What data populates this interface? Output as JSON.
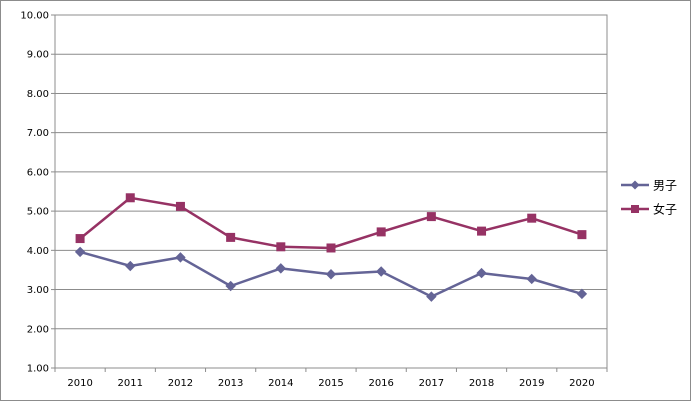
{
  "chart_data": {
    "type": "line",
    "title": "",
    "xlabel": "",
    "ylabel": "",
    "x": [
      "2010",
      "2011",
      "2012",
      "2013",
      "2014",
      "2015",
      "2016",
      "2017",
      "2018",
      "2019",
      "2020"
    ],
    "ylim": [
      1.0,
      10.0
    ],
    "yticks": [
      "1.00",
      "2.00",
      "3.00",
      "4.00",
      "5.00",
      "6.00",
      "7.00",
      "8.00",
      "9.00",
      "10.00"
    ],
    "grid": true,
    "legend_position": "right",
    "series": [
      {
        "name": "男子",
        "color": "#646496",
        "marker": "diamond",
        "values": [
          3.96,
          3.6,
          3.82,
          3.09,
          3.54,
          3.39,
          3.46,
          2.82,
          3.42,
          3.27,
          2.89
        ]
      },
      {
        "name": "女子",
        "color": "#963264",
        "marker": "square",
        "values": [
          4.3,
          5.34,
          5.12,
          4.33,
          4.09,
          4.06,
          4.47,
          4.86,
          4.49,
          4.82,
          4.4
        ]
      }
    ]
  }
}
